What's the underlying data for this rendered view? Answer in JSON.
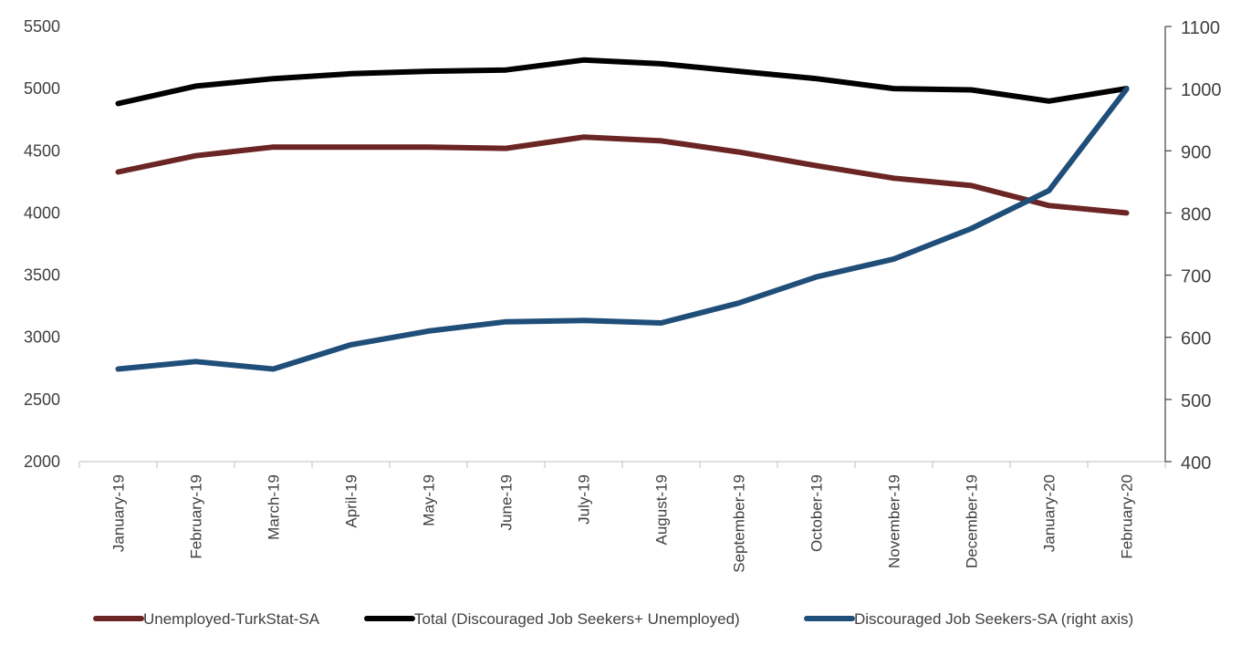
{
  "chart_data": {
    "type": "line",
    "title": "",
    "categories": [
      "January-19",
      "February-19",
      "March-19",
      "April-19",
      "May-19",
      "June-19",
      "July-19",
      "August-19",
      "September-19",
      "October-19",
      "November-19",
      "December-19",
      "January-20",
      "February-20"
    ],
    "y_left": {
      "ylim": [
        2000,
        5500
      ],
      "ticks": [
        2000,
        2500,
        3000,
        3500,
        4000,
        4500,
        5000,
        5500
      ]
    },
    "y_right": {
      "ylim": [
        400,
        1100
      ],
      "ticks": [
        400,
        500,
        600,
        700,
        800,
        900,
        1000,
        1100
      ]
    },
    "grid": false,
    "legend_position": "bottom",
    "series": [
      {
        "name": "Unemployed-TurkStat-SA",
        "axis": "left",
        "color": "#6b2524",
        "values": [
          4330,
          4460,
          4530,
          4530,
          4530,
          4520,
          4610,
          4580,
          4490,
          4380,
          4280,
          4220,
          4060,
          4000
        ]
      },
      {
        "name": "Total (Discouraged Job Seekers+ Unemployed)",
        "axis": "left",
        "color": "#000000",
        "values": [
          4880,
          5020,
          5080,
          5120,
          5140,
          5150,
          5230,
          5200,
          5140,
          5080,
          5000,
          4990,
          4900,
          5000
        ]
      },
      {
        "name": "Discouraged Job Seekers-SA (right axis)",
        "axis": "right",
        "color": "#1f4e79",
        "values": [
          549,
          561,
          549,
          588,
          610,
          625,
          627,
          623,
          655,
          697,
          726,
          775,
          836,
          999
        ]
      }
    ]
  }
}
